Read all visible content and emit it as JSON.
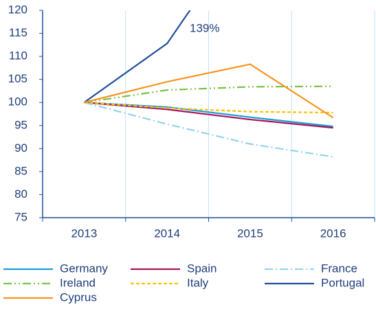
{
  "chart_data": {
    "type": "line",
    "categories": [
      "2013",
      "2014",
      "2015",
      "2016"
    ],
    "series": [
      {
        "name": "Germany",
        "color": "#1a9bd7",
        "style": "solid",
        "values": [
          100,
          99,
          96.8,
          94.8
        ]
      },
      {
        "name": "Spain",
        "color": "#a6145a",
        "style": "solid",
        "values": [
          100,
          98.5,
          96.3,
          94.5
        ]
      },
      {
        "name": "France",
        "color": "#92d3f0",
        "style": "dashdot",
        "values": [
          100,
          95.3,
          91,
          88.2
        ]
      },
      {
        "name": "Ireland",
        "color": "#7ac143",
        "style": "dashdotdot",
        "values": [
          100,
          102.7,
          103.4,
          103.5
        ]
      },
      {
        "name": "Italy",
        "color": "#ffc000",
        "style": "dashed",
        "values": [
          100,
          98.8,
          98,
          97.8
        ]
      },
      {
        "name": "Portugal",
        "color": "#1f4e9a",
        "style": "solid",
        "values": [
          100,
          112.8,
          139,
          null
        ]
      },
      {
        "name": "Cyprus",
        "color": "#f7941d",
        "style": "solid",
        "values": [
          100,
          104.5,
          108.3,
          96.7
        ]
      }
    ],
    "annotations": [
      "139%"
    ],
    "ylim": [
      75,
      120
    ],
    "yticks": [
      75,
      80,
      85,
      90,
      95,
      100,
      105,
      110,
      115,
      120
    ],
    "vertical_grid": true,
    "legend": "bottom"
  }
}
